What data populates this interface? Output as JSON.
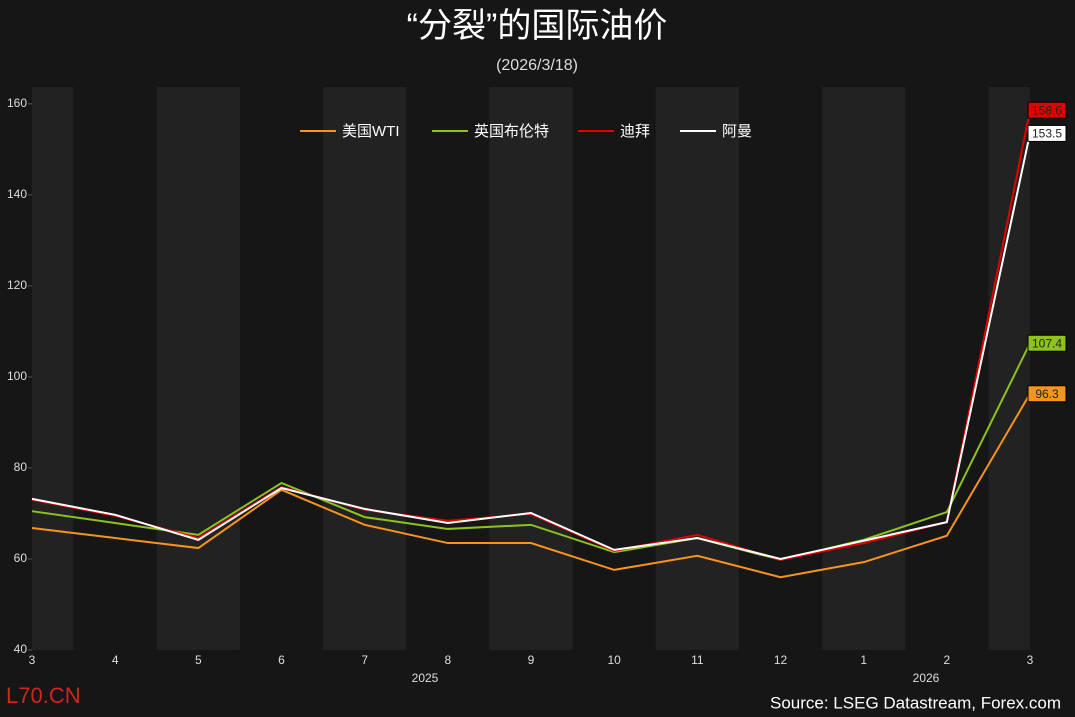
{
  "chart_data": {
    "type": "line",
    "title": "“分裂”的国际油价",
    "subtitle": "(2026/3/18)",
    "categories": [
      "3",
      "4",
      "5",
      "6",
      "7",
      "8",
      "9",
      "10",
      "11",
      "12",
      "1",
      "2",
      "3"
    ],
    "year_labels": [
      "2025",
      "2026"
    ],
    "series": [
      {
        "name": "美国WTI",
        "color": "#f7941d",
        "values": [
          66.8,
          64.6,
          62.4,
          75.2,
          67.5,
          63.5,
          63.5,
          57.6,
          60.7,
          56.0,
          59.3,
          65.1,
          96.3
        ]
      },
      {
        "name": "英国布伦特",
        "color": "#8dc21f",
        "values": [
          70.5,
          67.9,
          65.3,
          76.7,
          69.2,
          66.6,
          67.5,
          61.5,
          64.6,
          59.8,
          64.2,
          70.3,
          107.4
        ]
      },
      {
        "name": "迪拜",
        "color": "#e00000",
        "values": [
          73.0,
          69.5,
          64.6,
          75.8,
          70.8,
          68.4,
          69.9,
          61.8,
          65.3,
          59.8,
          63.5,
          68.1,
          158.6
        ]
      },
      {
        "name": "阿曼",
        "color": "#ffffff",
        "values": [
          73.2,
          69.7,
          64.2,
          75.6,
          71.0,
          67.9,
          70.1,
          62.0,
          64.6,
          60.0,
          64.0,
          68.1,
          153.5
        ]
      }
    ],
    "ylim": [
      40,
      163.7
    ],
    "yticks": [
      40,
      60,
      80,
      100,
      120,
      140,
      160
    ],
    "legend": "top",
    "source": "Source: LSEG Datastream, Forex.com",
    "watermark": "L70.CN"
  }
}
